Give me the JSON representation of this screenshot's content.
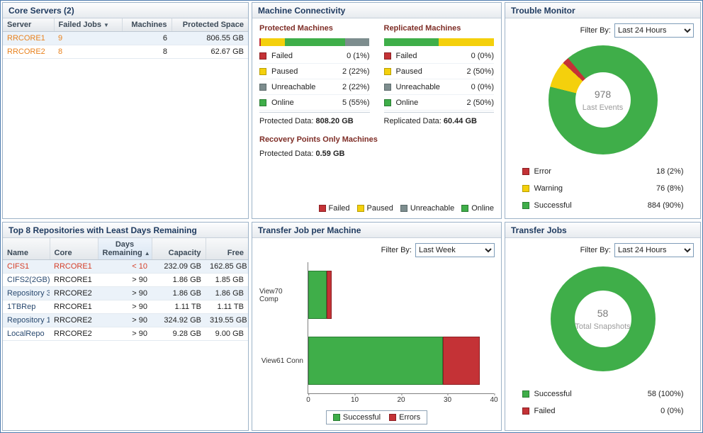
{
  "colors": {
    "link-orange": "#e8821e",
    "critical-red": "#d5402a",
    "panel-title": "#1e3a5f",
    "section-heading": "#7e2d26"
  },
  "status_colors": {
    "failed": {
      "bg": "#c43236",
      "border": "#8c1f23"
    },
    "error": {
      "bg": "#c43236",
      "border": "#8c1f23"
    },
    "paused": {
      "bg": "#f4d00c",
      "border": "#b89e00"
    },
    "warning": {
      "bg": "#f4d00c",
      "border": "#b89e00"
    },
    "unreachable": {
      "bg": "#7d8d8e",
      "border": "#5d6b6c"
    },
    "online": {
      "bg": "#3fae49",
      "border": "#2a7c33"
    },
    "successful": {
      "bg": "#3fae49",
      "border": "#2a7c33"
    }
  },
  "core_servers": {
    "title": "Core Servers (2)",
    "columns": {
      "server": "Server",
      "failed_jobs": "Failed Jobs",
      "machines": "Machines",
      "protected_space": "Protected Space"
    },
    "sort_icon": "▼",
    "rows": [
      {
        "server": "RRCORE1",
        "failed_jobs": "9",
        "machines": "6",
        "protected_space": "806.55 GB"
      },
      {
        "server": "RRCORE2",
        "failed_jobs": "8",
        "machines": "8",
        "protected_space": "62.67 GB"
      }
    ]
  },
  "repositories": {
    "title": "Top 8 Repositories with Least Days Remaining",
    "columns": {
      "name": "Name",
      "core": "Core",
      "days": "Days Remaining",
      "capacity": "Capacity",
      "free": "Free"
    },
    "sort_icon": "▲",
    "rows": [
      {
        "name": "CIFS1",
        "core": "RRCORE1",
        "days": "< 10",
        "capacity": "232.09 GB",
        "free": "162.85 GB"
      },
      {
        "name": "CIFS2(2GB)",
        "core": "RRCORE1",
        "days": "> 90",
        "capacity": "1.86 GB",
        "free": "1.85 GB"
      },
      {
        "name": "Repository 3",
        "core": "RRCORE2",
        "days": "> 90",
        "capacity": "1.86 GB",
        "free": "1.86 GB"
      },
      {
        "name": "1TBRep",
        "core": "RRCORE1",
        "days": "> 90",
        "capacity": "1.11 TB",
        "free": "1.11 TB"
      },
      {
        "name": "Repository 1",
        "core": "RRCORE2",
        "days": "> 90",
        "capacity": "324.92 GB",
        "free": "319.55 GB"
      },
      {
        "name": "LocalRepo",
        "core": "RRCORE2",
        "days": "> 90",
        "capacity": "9.28 GB",
        "free": "9.00 GB"
      }
    ]
  },
  "machine_connectivity": {
    "title": "Machine Connectivity",
    "protected": {
      "heading": "Protected Machines",
      "bar": [
        {
          "status": "failed",
          "pct": 1
        },
        {
          "status": "paused",
          "pct": 22
        },
        {
          "status": "online",
          "pct": 55
        },
        {
          "status": "unreachable",
          "pct": 22
        }
      ],
      "legend": [
        {
          "status": "failed",
          "label": "Failed",
          "value": "0 (1%)"
        },
        {
          "status": "paused",
          "label": "Paused",
          "value": "2 (22%)"
        },
        {
          "status": "unreachable",
          "label": "Unreachable",
          "value": "2 (22%)"
        },
        {
          "status": "online",
          "label": "Online",
          "value": "5 (55%)"
        }
      ],
      "footer_label": "Protected Data:",
      "footer_value": "808.20 GB"
    },
    "replicated": {
      "heading": "Replicated Machines",
      "bar": [
        {
          "status": "online",
          "pct": 50
        },
        {
          "status": "paused",
          "pct": 50
        }
      ],
      "legend": [
        {
          "status": "failed",
          "label": "Failed",
          "value": "0 (0%)"
        },
        {
          "status": "paused",
          "label": "Paused",
          "value": "2 (50%)"
        },
        {
          "status": "unreachable",
          "label": "Unreachable",
          "value": "0 (0%)"
        },
        {
          "status": "online",
          "label": "Online",
          "value": "2 (50%)"
        }
      ],
      "footer_label": "Replicated Data:",
      "footer_value": "60.44 GB"
    },
    "recovery_points": {
      "heading": "Recovery Points Only Machines",
      "footer_label": "Protected Data:",
      "footer_value": "0.59 GB"
    },
    "bottom_legend": [
      {
        "status": "failed",
        "label": "Failed"
      },
      {
        "status": "paused",
        "label": "Paused"
      },
      {
        "status": "unreachable",
        "label": "Unreachable"
      },
      {
        "status": "online",
        "label": "Online"
      }
    ]
  },
  "trouble_monitor": {
    "title": "Trouble Monitor",
    "filter_label": "Filter By:",
    "filter_value": "Last 24 Hours",
    "donut": {
      "type": "pie",
      "center_value": "978",
      "center_label": "Last Events",
      "segments": [
        {
          "status": "successful",
          "pct": 90
        },
        {
          "status": "warning",
          "pct": 8
        },
        {
          "status": "error",
          "pct": 2
        }
      ]
    },
    "legend": [
      {
        "status": "error",
        "label": "Error",
        "value": "18 (2%)"
      },
      {
        "status": "warning",
        "label": "Warning",
        "value": "76 (8%)"
      },
      {
        "status": "successful",
        "label": "Successful",
        "value": "884 (90%)"
      }
    ]
  },
  "transfer_job_per_machine": {
    "title": "Transfer Job per Machine",
    "filter_label": "Filter By:",
    "filter_value": "Last Week",
    "chart": {
      "type": "bar",
      "orientation": "horizontal",
      "categories": [
        "View70 Comp",
        "View61 Conn"
      ],
      "series": [
        {
          "name": "Successful",
          "status": "successful",
          "values": [
            4,
            29
          ]
        },
        {
          "name": "Errors",
          "status": "error",
          "values": [
            1,
            8
          ]
        }
      ],
      "xmax": 40,
      "ticks": [
        0,
        10,
        20,
        30,
        40
      ]
    },
    "legend": [
      {
        "status": "successful",
        "label": "Successful"
      },
      {
        "status": "error",
        "label": "Errors"
      }
    ]
  },
  "transfer_jobs": {
    "title": "Transfer Jobs",
    "filter_label": "Filter By:",
    "filter_value": "Last 24 Hours",
    "donut": {
      "type": "pie",
      "center_value": "58",
      "center_label": "Total Snapshots",
      "segments": [
        {
          "status": "successful",
          "pct": 100
        }
      ]
    },
    "legend": [
      {
        "status": "successful",
        "label": "Successful",
        "value": "58 (100%)"
      },
      {
        "status": "failed",
        "label": "Failed",
        "value": "0 (0%)"
      }
    ]
  }
}
